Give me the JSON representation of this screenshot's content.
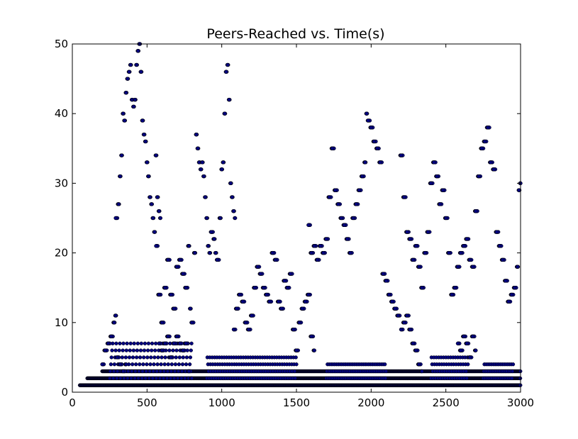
{
  "chart_data": {
    "type": "scatter",
    "title": "Peers-Reached vs. Time(s)",
    "xlabel": "",
    "ylabel": "",
    "xlim": [
      0,
      3000
    ],
    "ylim": [
      0,
      50
    ],
    "x_ticks": [
      0,
      500,
      1000,
      1500,
      2000,
      2500,
      3000
    ],
    "y_ticks": [
      0,
      10,
      20,
      30,
      40,
      50
    ],
    "grid": false,
    "legend": "none",
    "marker_color": "#000080",
    "baseline_series": [
      {
        "name": "",
        "y": 1,
        "x_start": 50,
        "x_end": 3000
      },
      {
        "name": "",
        "y": 2,
        "x_start": 100,
        "x_end": 3000
      },
      {
        "name": "",
        "y": 3,
        "x_start": 200,
        "x_end": 3000
      }
    ],
    "band_ranges": [
      {
        "x_start": 250,
        "x_end": 800,
        "y_min": 2,
        "y_max": 7
      },
      {
        "x_start": 900,
        "x_end": 1500,
        "y_min": 2,
        "y_max": 5
      },
      {
        "x_start": 1700,
        "x_end": 2100,
        "y_min": 2,
        "y_max": 4
      },
      {
        "x_start": 2400,
        "x_end": 2650,
        "y_min": 2,
        "y_max": 5
      },
      {
        "x_start": 2750,
        "x_end": 2950,
        "y_min": 2,
        "y_max": 4
      }
    ],
    "trajectories": [
      [
        [
          200,
          4
        ],
        [
          220,
          6
        ],
        [
          240,
          7
        ],
        [
          260,
          8
        ],
        [
          280,
          10
        ],
        [
          290,
          11
        ],
        [
          300,
          5
        ],
        [
          320,
          4
        ],
        [
          340,
          3
        ],
        [
          360,
          4
        ]
      ],
      [
        [
          290,
          25
        ],
        [
          310,
          27
        ],
        [
          320,
          31
        ],
        [
          330,
          34
        ],
        [
          340,
          40
        ],
        [
          350,
          39
        ],
        [
          360,
          43
        ],
        [
          370,
          45
        ],
        [
          380,
          46
        ],
        [
          390,
          47
        ],
        [
          400,
          42
        ],
        [
          410,
          41
        ],
        [
          420,
          42
        ],
        [
          430,
          47
        ],
        [
          440,
          49
        ],
        [
          450,
          50
        ],
        [
          460,
          46
        ],
        [
          470,
          39
        ],
        [
          480,
          37
        ],
        [
          490,
          36
        ],
        [
          500,
          33
        ],
        [
          510,
          31
        ],
        [
          520,
          28
        ],
        [
          530,
          27
        ],
        [
          540,
          25
        ],
        [
          550,
          23
        ],
        [
          560,
          34
        ],
        [
          570,
          28
        ],
        [
          580,
          26
        ],
        [
          590,
          25
        ]
      ],
      [
        [
          560,
          21
        ],
        [
          580,
          14
        ],
        [
          600,
          10
        ],
        [
          620,
          15
        ],
        [
          640,
          19
        ],
        [
          660,
          14
        ],
        [
          680,
          12
        ],
        [
          700,
          18
        ],
        [
          720,
          19
        ],
        [
          740,
          17
        ],
        [
          760,
          15
        ],
        [
          780,
          21
        ],
        [
          790,
          12
        ],
        [
          800,
          10
        ],
        [
          820,
          20
        ],
        [
          830,
          37
        ],
        [
          840,
          35
        ],
        [
          850,
          33
        ],
        [
          860,
          32
        ],
        [
          870,
          33
        ],
        [
          880,
          31
        ],
        [
          890,
          28
        ],
        [
          900,
          25
        ],
        [
          910,
          21
        ],
        [
          920,
          20
        ],
        [
          930,
          23
        ],
        [
          950,
          22
        ],
        [
          960,
          20
        ],
        [
          970,
          19
        ],
        [
          990,
          25
        ],
        [
          1000,
          32
        ],
        [
          1010,
          33
        ],
        [
          1020,
          40
        ],
        [
          1030,
          46
        ],
        [
          1040,
          47
        ],
        [
          1050,
          42
        ],
        [
          1060,
          30
        ],
        [
          1070,
          28
        ],
        [
          1080,
          26
        ],
        [
          1090,
          25
        ]
      ],
      [
        [
          580,
          7
        ],
        [
          600,
          6
        ],
        [
          620,
          7
        ],
        [
          640,
          8
        ],
        [
          660,
          5
        ],
        [
          680,
          7
        ],
        [
          700,
          8
        ],
        [
          720,
          7
        ],
        [
          740,
          6
        ],
        [
          760,
          7
        ],
        [
          780,
          3
        ],
        [
          800,
          2
        ]
      ],
      [
        [
          1080,
          9
        ],
        [
          1100,
          12
        ],
        [
          1120,
          14
        ],
        [
          1140,
          13
        ],
        [
          1160,
          10
        ],
        [
          1180,
          9
        ],
        [
          1200,
          11
        ],
        [
          1220,
          15
        ],
        [
          1240,
          18
        ],
        [
          1260,
          17
        ],
        [
          1280,
          15
        ],
        [
          1300,
          14
        ],
        [
          1320,
          13
        ],
        [
          1340,
          20
        ],
        [
          1360,
          19
        ],
        [
          1380,
          13
        ],
        [
          1400,
          12
        ],
        [
          1420,
          16
        ],
        [
          1440,
          15
        ],
        [
          1460,
          17
        ],
        [
          1480,
          9
        ],
        [
          1500,
          6
        ],
        [
          1520,
          10
        ],
        [
          1540,
          12
        ],
        [
          1560,
          13
        ],
        [
          1580,
          14
        ],
        [
          1600,
          8
        ],
        [
          1620,
          6
        ]
      ],
      [
        [
          1580,
          24
        ],
        [
          1600,
          20
        ],
        [
          1620,
          21
        ],
        [
          1640,
          19
        ],
        [
          1660,
          21
        ],
        [
          1680,
          20
        ],
        [
          1700,
          22
        ],
        [
          1720,
          28
        ],
        [
          1740,
          35
        ],
        [
          1760,
          29
        ],
        [
          1780,
          27
        ],
        [
          1800,
          25
        ],
        [
          1820,
          24
        ],
        [
          1840,
          22
        ],
        [
          1860,
          20
        ],
        [
          1880,
          25
        ],
        [
          1900,
          27
        ],
        [
          1920,
          29
        ],
        [
          1940,
          31
        ],
        [
          1960,
          33
        ],
        [
          1970,
          40
        ],
        [
          1980,
          39
        ],
        [
          2000,
          38
        ],
        [
          2020,
          36
        ],
        [
          2040,
          35
        ],
        [
          2060,
          33
        ],
        [
          2080,
          17
        ],
        [
          2100,
          16
        ],
        [
          2120,
          14
        ],
        [
          2140,
          13
        ],
        [
          2160,
          12
        ],
        [
          2180,
          11
        ],
        [
          2200,
          34
        ],
        [
          2220,
          28
        ],
        [
          2240,
          23
        ],
        [
          2260,
          22
        ],
        [
          2280,
          19
        ],
        [
          2300,
          21
        ],
        [
          2320,
          18
        ],
        [
          2340,
          15
        ],
        [
          2360,
          20
        ],
        [
          2380,
          23
        ],
        [
          2400,
          30
        ],
        [
          2420,
          33
        ],
        [
          2440,
          31
        ],
        [
          2460,
          27
        ],
        [
          2480,
          29
        ],
        [
          2500,
          25
        ],
        [
          2520,
          20
        ],
        [
          2540,
          14
        ],
        [
          2560,
          15
        ],
        [
          2580,
          18
        ],
        [
          2600,
          20
        ],
        [
          2620,
          21
        ],
        [
          2640,
          22
        ],
        [
          2660,
          19
        ],
        [
          2680,
          18
        ],
        [
          2700,
          26
        ],
        [
          2720,
          31
        ],
        [
          2740,
          35
        ],
        [
          2760,
          36
        ],
        [
          2780,
          38
        ],
        [
          2800,
          33
        ],
        [
          2820,
          32
        ],
        [
          2840,
          23
        ],
        [
          2860,
          21
        ],
        [
          2880,
          19
        ],
        [
          2900,
          16
        ],
        [
          2920,
          13
        ],
        [
          2940,
          14
        ],
        [
          2960,
          15
        ],
        [
          2980,
          18
        ],
        [
          2990,
          29
        ],
        [
          3000,
          30
        ]
      ],
      [
        [
          2200,
          9
        ],
        [
          2220,
          10
        ],
        [
          2240,
          11
        ],
        [
          2260,
          9
        ],
        [
          2280,
          7
        ],
        [
          2300,
          6
        ],
        [
          2320,
          4
        ],
        [
          2340,
          3
        ]
      ],
      [
        [
          2580,
          7
        ],
        [
          2600,
          6
        ],
        [
          2620,
          8
        ],
        [
          2640,
          7
        ],
        [
          2660,
          5
        ],
        [
          2680,
          8
        ],
        [
          2700,
          6
        ]
      ]
    ]
  }
}
